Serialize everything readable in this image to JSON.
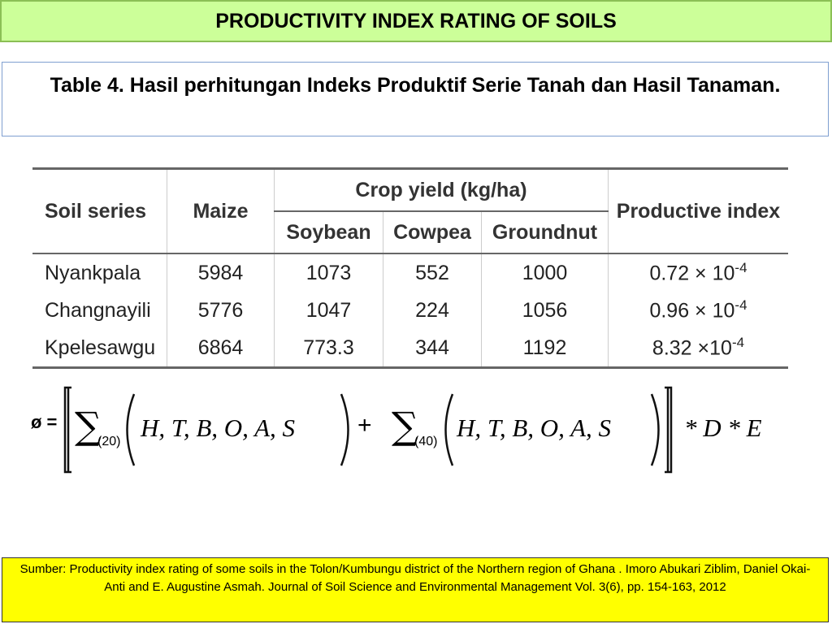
{
  "header": {
    "title": "PRODUCTIVITY INDEX RATING OF SOILS"
  },
  "caption": "Table 4. Hasil perhitungan Indeks Produktif Serie Tanah dan Hasil Tanaman.",
  "table": {
    "headers": {
      "soil_series": "Soil series",
      "maize": "Maize",
      "crop_yield": "Crop yield (kg/ha)",
      "soybean": "Soybean",
      "cowpea": "Cowpea",
      "groundnut": "Groundnut",
      "productive_index": "Productive index"
    },
    "rows": [
      {
        "soil": "Nyankpala",
        "maize": "5984",
        "soybean": "1073",
        "cowpea": "552",
        "groundnut": "1000",
        "index": "0.72 × 10",
        "exponent": "-4"
      },
      {
        "soil": "Changnayili",
        "maize": "5776",
        "soybean": "1047",
        "cowpea": "224",
        "groundnut": "1056",
        "index": "0.96 × 10",
        "exponent": "-4"
      },
      {
        "soil": "Kpelesawgu",
        "maize": "6864",
        "soybean": "773.3",
        "cowpea": "344",
        "groundnut": "1192",
        "index": "8.32 ×10",
        "exponent": "-4"
      }
    ]
  },
  "formula": {
    "lhs": "ø =",
    "sum1": "∑",
    "sub1": "(20)",
    "args1": "H,  T,  B,  O,  A,  S",
    "plus": "+",
    "sum2": "∑",
    "sub2": "(40)",
    "args2": "H,  T,  B,  O,  A,  S",
    "tail": "*  D  *  E"
  },
  "footer": "Sumber: Productivity index rating of some soils in the Tolon/Kumbungu district of the Northern region of Ghana .  Imoro Abukari Ziblim, Daniel Okai-Anti  and E. Augustine Asmah.   Journal of Soil Science and Environmental Management Vol. 3(6), pp. 154-163, 2012"
}
